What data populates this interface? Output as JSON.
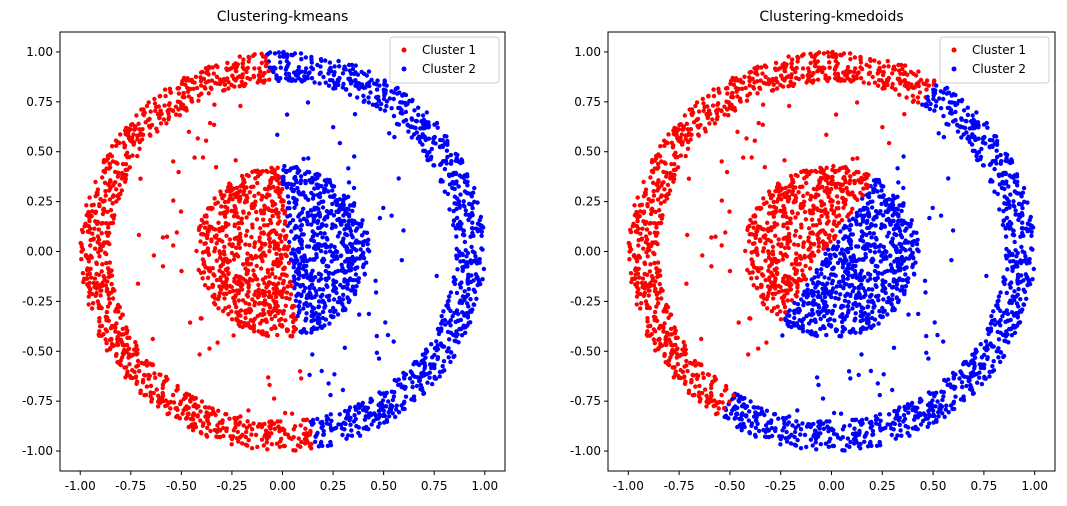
{
  "chart_data": [
    {
      "type": "scatter",
      "title": "Clustering-kmeans",
      "xlabel": "",
      "ylabel": "",
      "xlim": [
        -1.1,
        1.1
      ],
      "ylim": [
        -1.1,
        1.1
      ],
      "xticks": [
        "-1.00",
        "-0.75",
        "-0.50",
        "-0.25",
        "0.00",
        "0.25",
        "0.50",
        "0.75",
        "1.00"
      ],
      "yticks": [
        "-1.00",
        "-0.75",
        "-0.50",
        "-0.25",
        "0.00",
        "0.25",
        "0.50",
        "0.75",
        "1.00"
      ],
      "grid": false,
      "legend_position": "top-right",
      "dataset": {
        "description_of_shape": "two concentric rings",
        "inner_radius_range": [
          0.0,
          0.43
        ],
        "outer_radius_range": [
          0.85,
          1.0
        ],
        "sparse_noise_between": true
      },
      "partition": {
        "method": "vertical-line",
        "boundary_x_top": -0.08,
        "boundary_x_bottom": 0.15
      },
      "series": [
        {
          "name": "Cluster 1",
          "color": "#ff0000",
          "side": "left"
        },
        {
          "name": "Cluster 2",
          "color": "#0000ff",
          "side": "right"
        }
      ]
    },
    {
      "type": "scatter",
      "title": "Clustering-kmedoids",
      "xlabel": "",
      "ylabel": "",
      "xlim": [
        -1.1,
        1.1
      ],
      "ylim": [
        -1.1,
        1.1
      ],
      "xticks": [
        "-1.00",
        "-0.75",
        "-0.50",
        "-0.25",
        "0.00",
        "0.25",
        "0.50",
        "0.75",
        "1.00"
      ],
      "yticks": [
        "-1.00",
        "-0.75",
        "-0.50",
        "-0.25",
        "0.00",
        "0.25",
        "0.50",
        "0.75",
        "1.00"
      ],
      "grid": false,
      "legend_position": "top-right",
      "dataset": {
        "description_of_shape": "two concentric rings",
        "inner_radius_range": [
          0.0,
          0.43
        ],
        "outer_radius_range": [
          0.85,
          1.0
        ],
        "sparse_noise_between": true
      },
      "partition": {
        "method": "diagonal-line",
        "boundary_point_upper": [
          0.45,
          0.75
        ],
        "boundary_point_lower": [
          -0.5,
          -0.75
        ]
      },
      "series": [
        {
          "name": "Cluster 1",
          "color": "#ff0000",
          "side": "upper-left"
        },
        {
          "name": "Cluster 2",
          "color": "#0000ff",
          "side": "lower-right"
        }
      ]
    }
  ]
}
